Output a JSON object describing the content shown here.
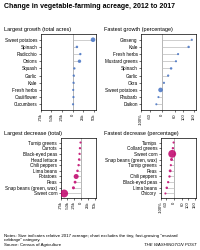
{
  "title": "Change in vegetable-farming acreage, 2012 to 2017",
  "annotations": [
    "Notes: Size indicates relative 2017 acreage; chart excludes the tiny, fast-growing \"mustard\ncabbage\" category.\nSource: Census of Agriculture",
    "THE WASHINGTON POST"
  ],
  "chart_data": [
    {
      "type": "lollipop",
      "orientation": "horizontal",
      "title": "Largest growth (total acres)",
      "categories": [
        "Sweet potatoes",
        "Spinach",
        "Radicchio",
        "Onions",
        "Squash",
        "Garlic",
        "Kale",
        "Fresh herbs",
        "Cauliflower",
        "Cucumbers"
      ],
      "values": [
        48000,
        10000,
        18000,
        16000,
        4000,
        2500,
        2000,
        1200,
        1800,
        800
      ],
      "sizes": [
        180,
        25,
        18,
        80,
        18,
        15,
        12,
        8,
        12,
        10
      ],
      "color": "#4472c4",
      "xlim": [
        -75000,
        55000
      ],
      "xticks": [
        {
          "value": -75000,
          "label": "-75k"
        },
        {
          "value": -50000,
          "label": "-50k"
        },
        {
          "value": -25000,
          "label": "-25k"
        },
        0,
        {
          "value": 25000,
          "label": "25k"
        },
        {
          "value": 50000,
          "label": "50k"
        }
      ],
      "grid": false
    },
    {
      "type": "lollipop",
      "orientation": "horizontal",
      "title": "Fastest growth (percentage)",
      "categories": [
        "Ginseng",
        "Kale",
        "Fresh herbs",
        "Mustard greens",
        "Spinach",
        "Garlic",
        "Okra",
        "Sweet potatoes",
        "Rhubarb",
        "Daikon"
      ],
      "values": [
        140,
        125,
        75,
        65,
        42,
        28,
        8,
        -8,
        -18,
        -28
      ],
      "sizes": [
        5,
        20,
        8,
        8,
        25,
        15,
        7,
        180,
        5,
        5
      ],
      "color": "#4472c4",
      "xlim": [
        -100,
        160
      ],
      "xticks": [
        {
          "value": -100,
          "label": "-100%"
        },
        -60,
        0,
        60,
        100,
        150
      ],
      "grid": false
    },
    {
      "type": "lollipop",
      "orientation": "horizontal",
      "title": "Largest decrease (total)",
      "categories": [
        "Turnip greens",
        "Carrots",
        "Black-eyed peas",
        "Head lettuce",
        "Chili peppers",
        "Lima beans",
        "Potatoes",
        "Peas",
        "Snap beans (green, wax)",
        "Sweet corn"
      ],
      "values": [
        -2000,
        -4000,
        -5500,
        -7000,
        -9000,
        -13000,
        -18000,
        -22000,
        -28000,
        -62000
      ],
      "sizes": [
        8,
        15,
        12,
        25,
        18,
        25,
        220,
        45,
        55,
        600
      ],
      "color": "#c0006a",
      "xlim": [
        -75000,
        55000
      ],
      "xticks": [
        {
          "value": -75000,
          "label": "-75k"
        },
        {
          "value": -50000,
          "label": "-50k"
        },
        {
          "value": -25000,
          "label": "-25k"
        },
        0,
        {
          "value": 25000,
          "label": "25k"
        },
        {
          "value": 50000,
          "label": "50k"
        }
      ],
      "grid": false
    },
    {
      "type": "lollipop",
      "orientation": "horizontal",
      "title": "Fastest decrease (percentage)",
      "categories": [
        "Turnips",
        "Collard greens",
        "Sweet corn",
        "Snap beans (green, wax)",
        "Turnip greens",
        "Peas",
        "Chili peppers",
        "Black-eyed peas",
        "Lima beans",
        "Chicory"
      ],
      "values": [
        -5,
        -10,
        -15,
        -20,
        -25,
        -30,
        -35,
        -45,
        -55,
        -65
      ],
      "sizes": [
        8,
        18,
        600,
        55,
        8,
        45,
        18,
        12,
        25,
        5
      ],
      "color": "#c0006a",
      "xlim": [
        -100,
        160
      ],
      "xticks": [
        {
          "value": -100,
          "label": "-100%"
        },
        -60,
        0,
        60,
        100,
        150
      ],
      "grid": false
    }
  ]
}
